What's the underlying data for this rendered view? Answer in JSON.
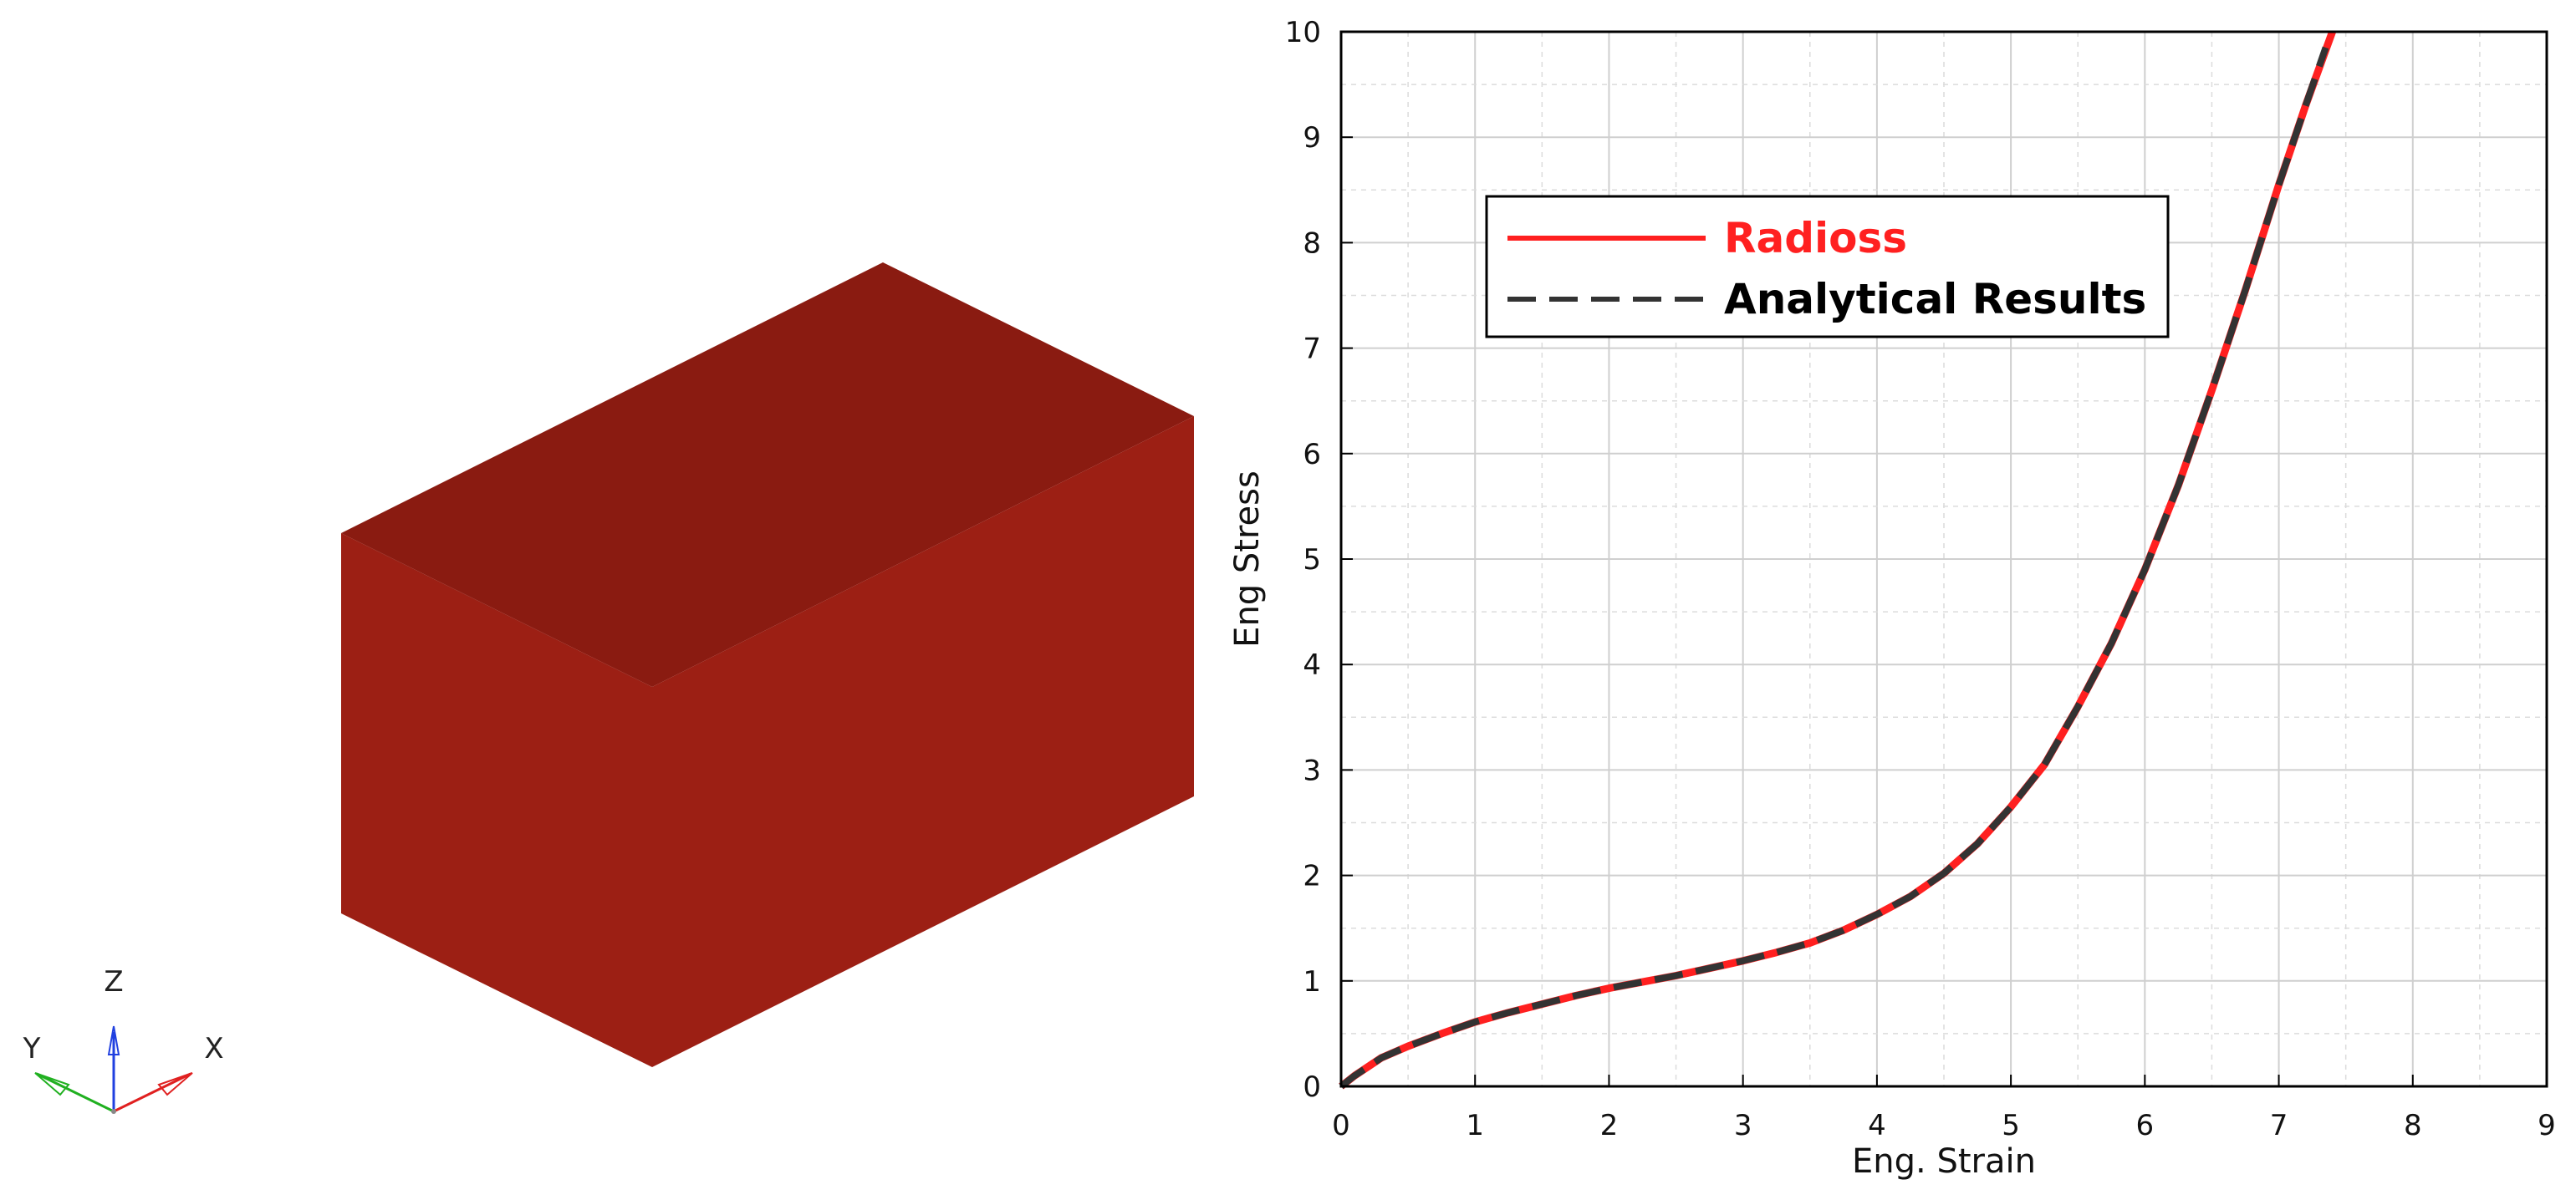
{
  "model_view": {
    "solid_color": "#9C1F14",
    "top_color": "#8A1B11",
    "triad": {
      "x_label": "X",
      "y_label": "Y",
      "z_label": "Z",
      "x_color": "#E02020",
      "y_color": "#20B020",
      "z_color": "#2040E0"
    }
  },
  "chart_data": {
    "type": "line",
    "xlabel": "Eng. Strain",
    "ylabel": "Eng Stress",
    "xlim": [
      0,
      9
    ],
    "ylim": [
      0,
      10
    ],
    "x_ticks": [
      "0",
      "1",
      "2",
      "3",
      "4",
      "5",
      "6",
      "7",
      "8",
      "9"
    ],
    "y_ticks": [
      "0",
      "1",
      "2",
      "3",
      "4",
      "5",
      "6",
      "7",
      "8",
      "9",
      "10"
    ],
    "grid": true,
    "minor_grid": true,
    "legend_position": "top-left",
    "series": [
      {
        "name": "Radioss",
        "color": "#FF2020",
        "style": "solid",
        "x": [
          0,
          0.1,
          0.3,
          0.5,
          0.75,
          1,
          1.25,
          1.5,
          1.75,
          2,
          2.25,
          2.5,
          2.75,
          3,
          3.25,
          3.5,
          3.75,
          4,
          4.25,
          4.5,
          4.75,
          5,
          5.25,
          5.5,
          5.75,
          6,
          6.25,
          6.5,
          6.75,
          7,
          7.2,
          7.4
        ],
        "y": [
          0,
          0.1,
          0.27,
          0.38,
          0.5,
          0.61,
          0.7,
          0.78,
          0.86,
          0.93,
          0.99,
          1.05,
          1.12,
          1.19,
          1.27,
          1.36,
          1.48,
          1.63,
          1.8,
          2.02,
          2.3,
          2.65,
          3.05,
          3.6,
          4.2,
          4.9,
          5.7,
          6.6,
          7.55,
          8.55,
          9.3,
          10.0
        ]
      },
      {
        "name": "Analytical Results",
        "color": "#333333",
        "style": "dashed",
        "x": [
          0,
          0.1,
          0.3,
          0.5,
          0.75,
          1,
          1.25,
          1.5,
          1.75,
          2,
          2.25,
          2.5,
          2.75,
          3,
          3.25,
          3.5,
          3.75,
          4,
          4.25,
          4.5,
          4.75,
          5,
          5.25,
          5.5,
          5.75,
          6,
          6.25,
          6.5,
          6.75,
          7,
          7.2,
          7.35
        ],
        "y": [
          0,
          0.1,
          0.27,
          0.38,
          0.5,
          0.61,
          0.7,
          0.78,
          0.86,
          0.93,
          0.99,
          1.05,
          1.12,
          1.19,
          1.27,
          1.36,
          1.48,
          1.63,
          1.8,
          2.02,
          2.3,
          2.65,
          3.05,
          3.6,
          4.2,
          4.9,
          5.7,
          6.6,
          7.55,
          8.55,
          9.3,
          9.85
        ]
      }
    ]
  }
}
